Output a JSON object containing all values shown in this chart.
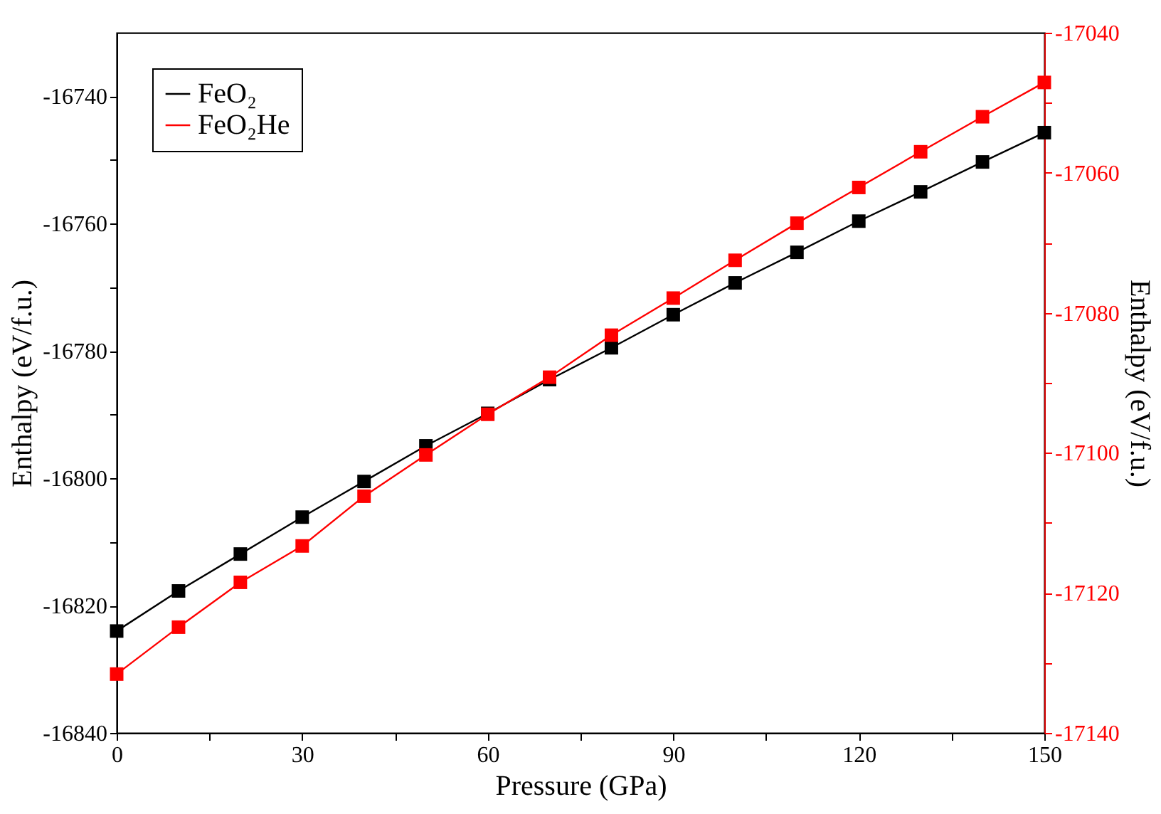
{
  "chart_data": {
    "type": "line",
    "xlabel": "Pressure (GPa)",
    "ylabel": "Enthalpy (eV/f.u.)",
    "y2label": "Enthalpy (eV/f.u.)",
    "x": [
      0,
      10,
      20,
      30,
      40,
      50,
      60,
      70,
      80,
      90,
      100,
      110,
      120,
      130,
      140,
      150
    ],
    "series": [
      {
        "name": "FeO₂",
        "color": "#000000",
        "values": [
          -16824.0,
          -16817.7,
          -16811.9,
          -16806.1,
          -16800.5,
          -16794.9,
          -16789.8,
          -16784.5,
          -16779.5,
          -16774.3,
          -16769.3,
          -16764.5,
          -16759.6,
          -16755.0,
          -16750.3,
          -16745.7
        ]
      },
      {
        "name": "FeO₂He",
        "color": "#ff0000",
        "axis": "y2",
        "values": [
          -17131.6,
          -17124.9,
          -17118.5,
          -17113.3,
          -17106.2,
          -17100.3,
          -17094.5,
          -17089.2,
          -17083.2,
          -17077.9,
          -17072.5,
          -17067.2,
          -17062.1,
          -17057.0,
          -17052.0,
          -17047.1
        ]
      }
    ],
    "xlim": [
      0,
      150
    ],
    "xticks": [
      0,
      {
        "value": 15,
        "label": null
      },
      30,
      {
        "value": 45,
        "label": null
      },
      60,
      {
        "value": 75,
        "label": null
      },
      90,
      {
        "value": 105,
        "label": null
      },
      120,
      {
        "value": 135,
        "label": null
      },
      150
    ],
    "ylim": [
      -16840,
      -16730
    ],
    "yticks": [
      -16840,
      {
        "value": -16830,
        "label": null
      },
      -16820,
      {
        "value": -16810,
        "label": null
      },
      -16800,
      {
        "value": -16790,
        "label": null
      },
      -16780,
      {
        "value": -16770,
        "label": null
      },
      -16760,
      {
        "value": -16750,
        "label": null
      },
      -16740
    ],
    "y2lim": [
      -17140,
      -17040
    ],
    "y2ticks": [
      -17140,
      {
        "value": -17130,
        "label": null
      },
      -17120,
      {
        "value": -17110,
        "label": null
      },
      -17100,
      {
        "value": -17090,
        "label": null
      },
      -17080,
      {
        "value": -17070,
        "label": null
      },
      -17060,
      {
        "value": -17050,
        "label": null
      },
      -17040
    ],
    "marker": "square",
    "line_style": "solid",
    "grid": false,
    "legend": "top left"
  }
}
